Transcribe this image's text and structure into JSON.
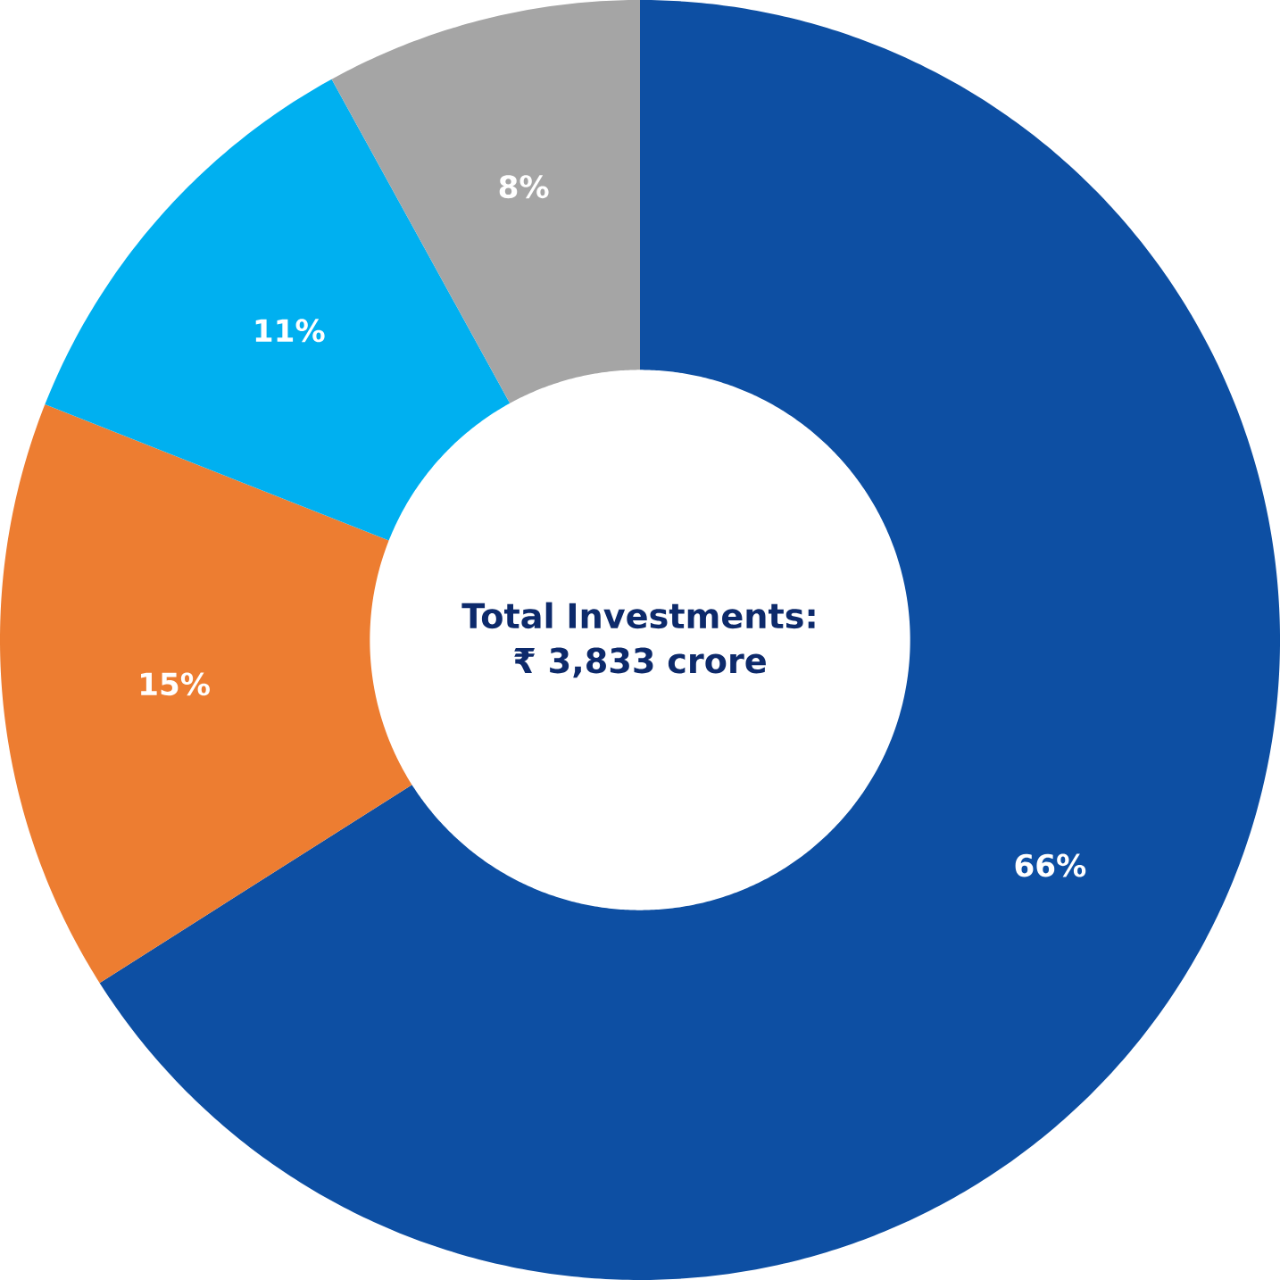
{
  "chart_data": {
    "type": "donut",
    "title": "Total Investments: ₹ 3,833 crore",
    "categories": [
      null,
      null,
      null,
      null
    ],
    "values": [
      66,
      15,
      11,
      8
    ],
    "colors": [
      "#0d4fa3",
      "#ed7d31",
      "#00b0f0",
      "#a5a5a5"
    ],
    "value_labels": [
      "66%",
      "15%",
      "11%",
      "8%"
    ]
  }
}
